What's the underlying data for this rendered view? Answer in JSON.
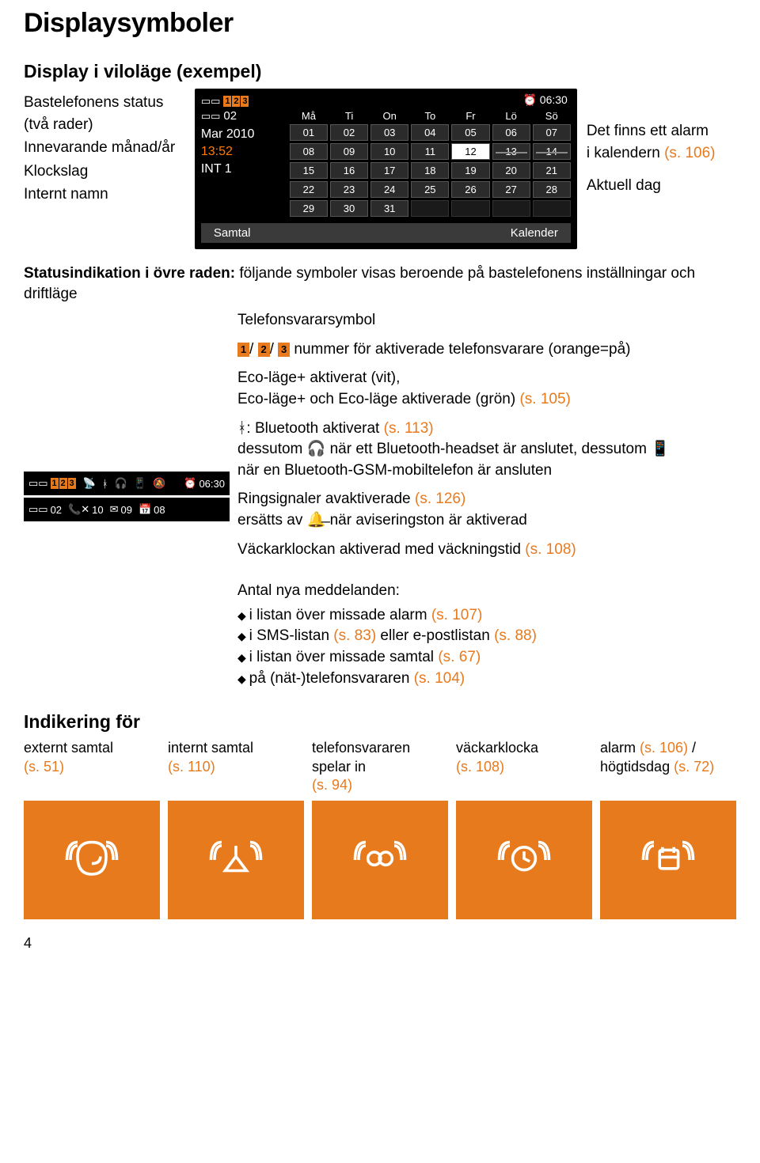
{
  "heading": "Displaysymboler",
  "subheading": "Display i viloläge (exempel)",
  "leftLabels": {
    "l1": "Bastelefonens status (två rader)",
    "l2": "Innevarande månad/år",
    "l3": "Klockslag",
    "l4": "Internt namn"
  },
  "screen": {
    "vm_digits": "123",
    "vm_count2": "02",
    "alarm_time": "06:30",
    "month_year": "Mar 2010",
    "clock": "13:52",
    "int_name": "INT 1",
    "days": [
      "Må",
      "Ti",
      "On",
      "To",
      "Fr",
      "Lö",
      "Sö"
    ],
    "cells": [
      {
        "d": "01"
      },
      {
        "d": "02"
      },
      {
        "d": "03"
      },
      {
        "d": "04"
      },
      {
        "d": "05"
      },
      {
        "d": "06"
      },
      {
        "d": "07"
      },
      {
        "d": "08"
      },
      {
        "d": "09"
      },
      {
        "d": "10"
      },
      {
        "d": "11"
      },
      {
        "d": "12",
        "today": true
      },
      {
        "d": "13",
        "strike": true
      },
      {
        "d": "14",
        "strike": true
      },
      {
        "d": "15"
      },
      {
        "d": "16"
      },
      {
        "d": "17"
      },
      {
        "d": "18"
      },
      {
        "d": "19"
      },
      {
        "d": "20"
      },
      {
        "d": "21"
      },
      {
        "d": "22"
      },
      {
        "d": "23"
      },
      {
        "d": "24"
      },
      {
        "d": "25"
      },
      {
        "d": "26"
      },
      {
        "d": "27"
      },
      {
        "d": "28"
      },
      {
        "d": "29"
      },
      {
        "d": "30"
      },
      {
        "d": "31"
      },
      {
        "d": "",
        "empty": true
      },
      {
        "d": "",
        "empty": true
      },
      {
        "d": "",
        "empty": true
      },
      {
        "d": "",
        "empty": true
      }
    ],
    "softkey_left": "Samtal",
    "softkey_right": "Kalender"
  },
  "rightLabels": {
    "r1a": "Det finns ett alarm",
    "r1b": "i kalendern ",
    "r1c": "(s. 106)",
    "r2": "Aktuell dag"
  },
  "status_intro_a": "Statusindikation i övre raden:",
  "status_intro_b": " följande symboler visas beroende på bastelefonens inställningar och driftläge",
  "items": {
    "i1": "Telefonsvararsymbol",
    "i2a": "nummer för aktiverade telefonsvarare (orange=på)",
    "i3a": "Eco-läge+ aktiverat (vit),",
    "i3b": "Eco-läge+ och Eco-läge aktiverade (grön) ",
    "i3c": "(s. 105)",
    "i4a": ": Bluetooth aktiverat ",
    "i4b": "(s. 113)",
    "i4c": "dessutom ",
    "i4d": " när ett Bluetooth-headset är anslutet, dessutom ",
    "i4e": "när en Bluetooth-GSM-mobiltelefon är ansluten",
    "i5a": "Ringsignaler avaktiverade ",
    "i5b": "(s. 126)",
    "i5c": "ersätts av ",
    "i5d": " när aviseringston är aktiverad",
    "i6a": "Väckarklockan aktiverad med väckningstid ",
    "i6b": "(s. 108)"
  },
  "statusbar1": {
    "vm123": "123",
    "time": "06:30"
  },
  "statusbar2": {
    "vm": "02",
    "missed": "10",
    "sms": "09",
    "cal": "08"
  },
  "messages": {
    "title": "Antal nya meddelanden:",
    "m1a": "i listan över missade alarm ",
    "m1b": "(s. 107)",
    "m2a": "i SMS-listan ",
    "m2b": "(s. 83)",
    "m2c": " eller e-postlistan ",
    "m2d": "(s. 88)",
    "m3a": "i listan över missade samtal ",
    "m3b": "(s. 67)",
    "m4a": "på (nät-)telefonsvararen ",
    "m4b": "(s. 104)"
  },
  "bottom": {
    "heading": "Indikering för",
    "cols": [
      {
        "t1": "externt samtal",
        "t2": "(s. 51)"
      },
      {
        "t1": "internt samtal",
        "t2": "(s. 110)"
      },
      {
        "t1": "telefonsvararen spelar in ",
        "t2": "(s. 94)"
      },
      {
        "t1": "väckarklocka",
        "t2": "(s. 108)"
      },
      {
        "t1": "alarm ",
        "t2": "(s. 106)",
        "t3": " / högtidsdag ",
        "t4": "(s. 72)"
      }
    ]
  },
  "pagenum": "4"
}
